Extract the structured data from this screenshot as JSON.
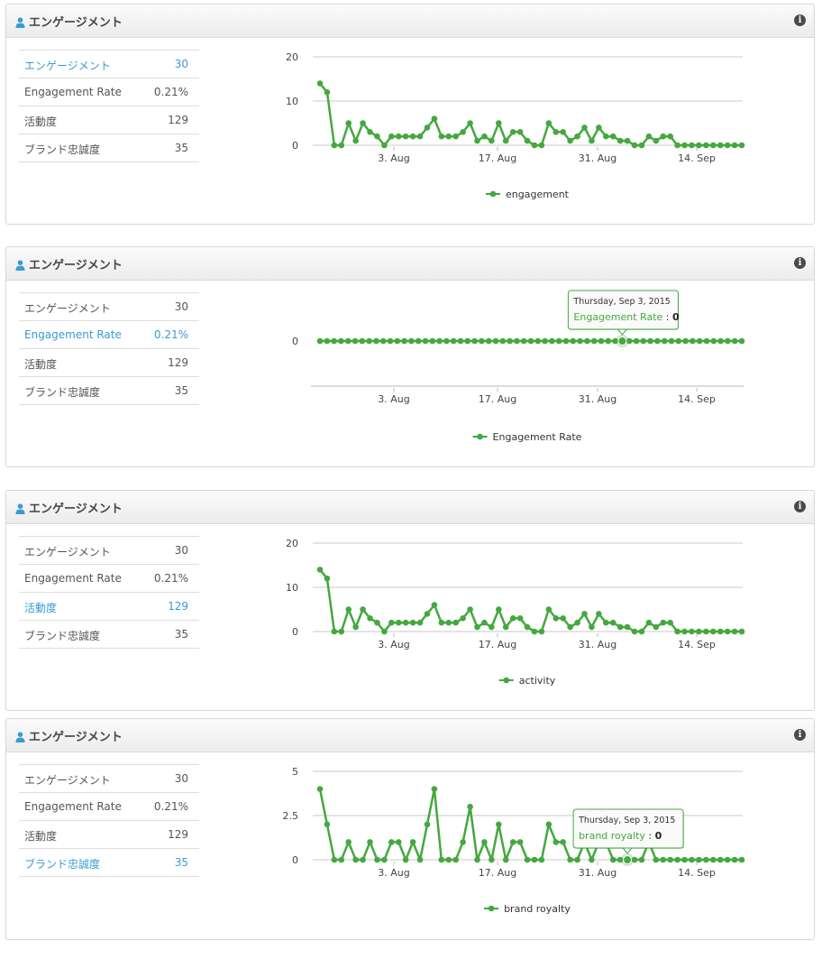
{
  "colors": {
    "series": "#45a83f",
    "link": "#3b9bd4",
    "grid": "#c8c8c8"
  },
  "stats": [
    {
      "label": "エンゲージメント",
      "value": "30"
    },
    {
      "label": "Engagement Rate",
      "value": "0.21%"
    },
    {
      "label": "活動度",
      "value": "129"
    },
    {
      "label": "ブランド忠誠度",
      "value": "35"
    }
  ],
  "panels": [
    {
      "title": "エンゲージメント",
      "info_icon": "info-icon",
      "user_icon": "user-icon",
      "active_index": 0,
      "chart_data": {
        "type": "line",
        "xlabel": "",
        "ylabel": "",
        "xticks": [
          "3. Aug",
          "17. Aug",
          "31. Aug",
          "14. Sep"
        ],
        "yticks": [
          "0",
          "10",
          "20"
        ],
        "ylim": [
          0,
          20
        ],
        "grid": true,
        "legend_position": "bottom",
        "series": [
          {
            "name": "engagement",
            "values": [
              14,
              12,
              0,
              0,
              5,
              1,
              5,
              3,
              2,
              0,
              2,
              2,
              2,
              2,
              2,
              4,
              6,
              2,
              2,
              2,
              3,
              5,
              1,
              2,
              1,
              5,
              1,
              3,
              3,
              1,
              0,
              0,
              5,
              3,
              3,
              1,
              2,
              4,
              1,
              4,
              2,
              2,
              1,
              1,
              0,
              0,
              2,
              1,
              2,
              2,
              0,
              0,
              0,
              0,
              0,
              0,
              0,
              0,
              0,
              0
            ]
          }
        ]
      }
    },
    {
      "title": "エンゲージメント",
      "info_icon": "info-icon",
      "user_icon": "user-icon",
      "active_index": 1,
      "chart_data": {
        "type": "line",
        "xlabel": "",
        "ylabel": "",
        "xticks": [
          "3. Aug",
          "17. Aug",
          "31. Aug",
          "14. Sep"
        ],
        "yticks": [
          "0"
        ],
        "ylim": [
          0,
          1
        ],
        "grid": false,
        "legend_position": "bottom",
        "series": [
          {
            "name": "Engagement Rate",
            "values": [
              0,
              0,
              0,
              0,
              0,
              0,
              0,
              0,
              0,
              0,
              0,
              0,
              0,
              0,
              0,
              0,
              0,
              0,
              0,
              0,
              0,
              0,
              0,
              0,
              0,
              0,
              0,
              0,
              0,
              0,
              0,
              0,
              0,
              0,
              0,
              0,
              0,
              0,
              0,
              0,
              0,
              0,
              0,
              0,
              0,
              0,
              0,
              0,
              0,
              0,
              0,
              0,
              0,
              0,
              0,
              0,
              0,
              0,
              0,
              0,
              0
            ]
          }
        ],
        "tooltip": {
          "date": "Thursday, Sep 3, 2015",
          "series": "Engagement Rate",
          "value": "0",
          "index": 43
        }
      }
    },
    {
      "title": "エンゲージメント",
      "info_icon": "info-icon",
      "user_icon": "user-icon",
      "active_index": 2,
      "chart_data": {
        "type": "line",
        "xlabel": "",
        "ylabel": "",
        "xticks": [
          "3. Aug",
          "17. Aug",
          "31. Aug",
          "14. Sep"
        ],
        "yticks": [
          "0",
          "10",
          "20"
        ],
        "ylim": [
          0,
          20
        ],
        "grid": true,
        "legend_position": "bottom",
        "series": [
          {
            "name": "activity",
            "values": [
              14,
              12,
              0,
              0,
              5,
              1,
              5,
              3,
              2,
              0,
              2,
              2,
              2,
              2,
              2,
              4,
              6,
              2,
              2,
              2,
              3,
              5,
              1,
              2,
              1,
              5,
              1,
              3,
              3,
              1,
              0,
              0,
              5,
              3,
              3,
              1,
              2,
              4,
              1,
              4,
              2,
              2,
              1,
              1,
              0,
              0,
              2,
              1,
              2,
              2,
              0,
              0,
              0,
              0,
              0,
              0,
              0,
              0,
              0,
              0
            ]
          }
        ]
      }
    },
    {
      "title": "エンゲージメント",
      "info_icon": "info-icon",
      "user_icon": "user-icon",
      "active_index": 3,
      "chart_data": {
        "type": "line",
        "xlabel": "",
        "ylabel": "",
        "xticks": [
          "3. Aug",
          "17. Aug",
          "31. Aug",
          "14. Sep"
        ],
        "yticks": [
          "0",
          "2.5",
          "5"
        ],
        "ylim": [
          0,
          5
        ],
        "grid": true,
        "legend_position": "bottom",
        "series": [
          {
            "name": "brand royalty",
            "values": [
              4,
              2,
              0,
              0,
              1,
              0,
              0,
              1,
              0,
              0,
              1,
              1,
              0,
              1,
              0,
              2,
              4,
              0,
              0,
              0,
              1,
              3,
              0,
              1,
              0,
              2,
              0,
              1,
              1,
              0,
              0,
              0,
              2,
              1,
              1,
              0,
              0,
              1,
              0,
              1,
              1,
              0,
              0,
              0,
              0,
              0,
              1,
              0,
              0,
              0,
              0,
              0,
              0,
              0,
              0,
              0,
              0,
              0,
              0,
              0
            ]
          }
        ],
        "tooltip": {
          "date": "Thursday, Sep 3, 2015",
          "series": "brand royalty",
          "value": "0",
          "index": 43
        }
      }
    }
  ]
}
